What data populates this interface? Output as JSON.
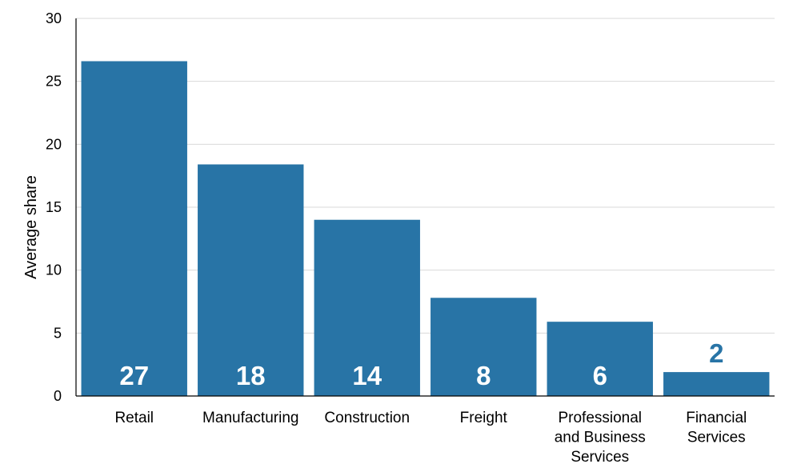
{
  "chart_data": {
    "type": "bar",
    "categories": [
      [
        "Retail"
      ],
      [
        "Manufacturing"
      ],
      [
        "Construction"
      ],
      [
        "Freight"
      ],
      [
        "Professional",
        "and Business",
        "Services"
      ],
      [
        "Financial",
        "Services"
      ]
    ],
    "values": [
      26.6,
      18.4,
      14.0,
      7.8,
      5.9,
      1.9
    ],
    "data_labels": [
      "27",
      "18",
      "14",
      "8",
      "6",
      "2"
    ],
    "title": "",
    "xlabel": "",
    "ylabel": "Average share",
    "ylim": [
      0,
      30
    ],
    "yticks": [
      0,
      5,
      10,
      15,
      20,
      25,
      30
    ],
    "grid": true,
    "legend": "none",
    "colors": {
      "bar": "#2874a6",
      "label_inside": "#ffffff",
      "label_outside": "#2874a6",
      "grid": "#d9d9d9",
      "axis": "#000000"
    }
  }
}
